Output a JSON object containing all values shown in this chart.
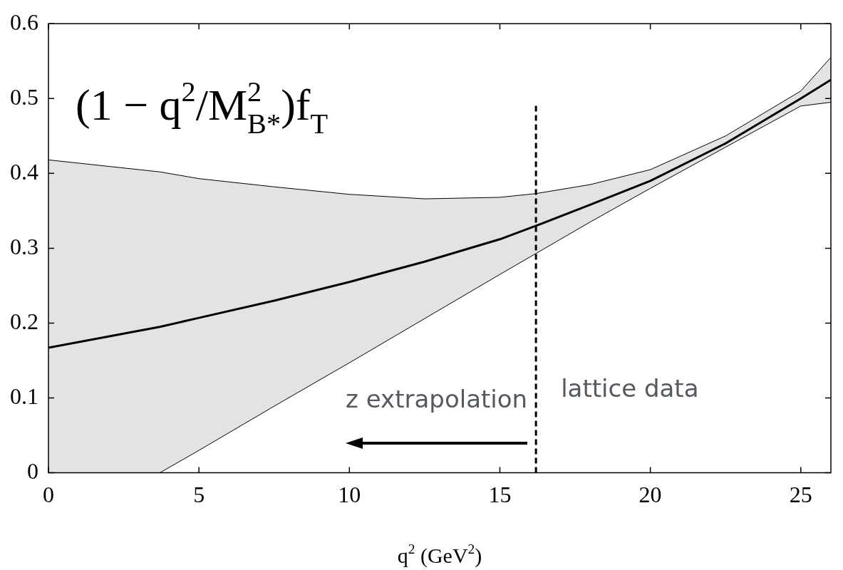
{
  "chart_data": {
    "type": "line",
    "title": "(1 − q$^{2}$/M$^{2}$$_{B*}$)f$_{T}$",
    "xlabel": "q$^{2}$ (GeV$^{2}$)",
    "series": [
      {
        "color": "#000000",
        "x": [
          0,
          3.7,
          5,
          7.5,
          10,
          12.5,
          15,
          16.2,
          18,
          20,
          22.5,
          25,
          26
        ],
        "values": [
          0.167,
          0.195,
          0.207,
          0.23,
          0.255,
          0.282,
          0.312,
          0.33,
          0.358,
          0.39,
          0.44,
          0.5,
          0.525
        ],
        "lower": [
          0,
          0,
          0.03,
          0.089,
          0.147,
          0.206,
          0.265,
          0.293,
          0.335,
          0.38,
          0.435,
          0.49,
          0.495
        ],
        "upper": [
          0.418,
          0.402,
          0.393,
          0.382,
          0.372,
          0.366,
          0.368,
          0.373,
          0.385,
          0.405,
          0.45,
          0.51,
          0.555
        ]
      },
      {
        "color": "#000000",
        "x": [
          0,
          3.7,
          5,
          7.5,
          10,
          12.5,
          15,
          16.2,
          18,
          20,
          22.5,
          25,
          26
        ],
        "values": [
          0.418,
          0.402,
          0.393,
          0.382,
          0.372,
          0.366,
          0.368,
          0.373,
          0.385,
          0.405,
          0.45,
          0.51,
          0.555
        ]
      },
      {
        "color": "#000000",
        "x": [
          3.7,
          5,
          7.5,
          10,
          12.5,
          15,
          16.2,
          18,
          20,
          22.5,
          25,
          26
        ],
        "values": [
          0,
          0.03,
          0.089,
          0.147,
          0.206,
          0.265,
          0.293,
          0.335,
          0.38,
          0.435,
          0.49,
          0.495
        ]
      }
    ],
    "xlim": [
      0,
      26
    ],
    "xticks": [
      0,
      5,
      10,
      15,
      20,
      25
    ],
    "ylim": [
      0,
      0.6
    ],
    "yticks": [
      0,
      0.1,
      0.2,
      0.3,
      0.4,
      0.5,
      0.6
    ],
    "ref_lines": [
      {
        "axis": "x",
        "value": 16.2,
        "line_style": "dashed",
        "color": "#000000"
      }
    ],
    "annotations": [
      "lattice data",
      "z extrapolation"
    ],
    "grid": false,
    "legend": false
  }
}
